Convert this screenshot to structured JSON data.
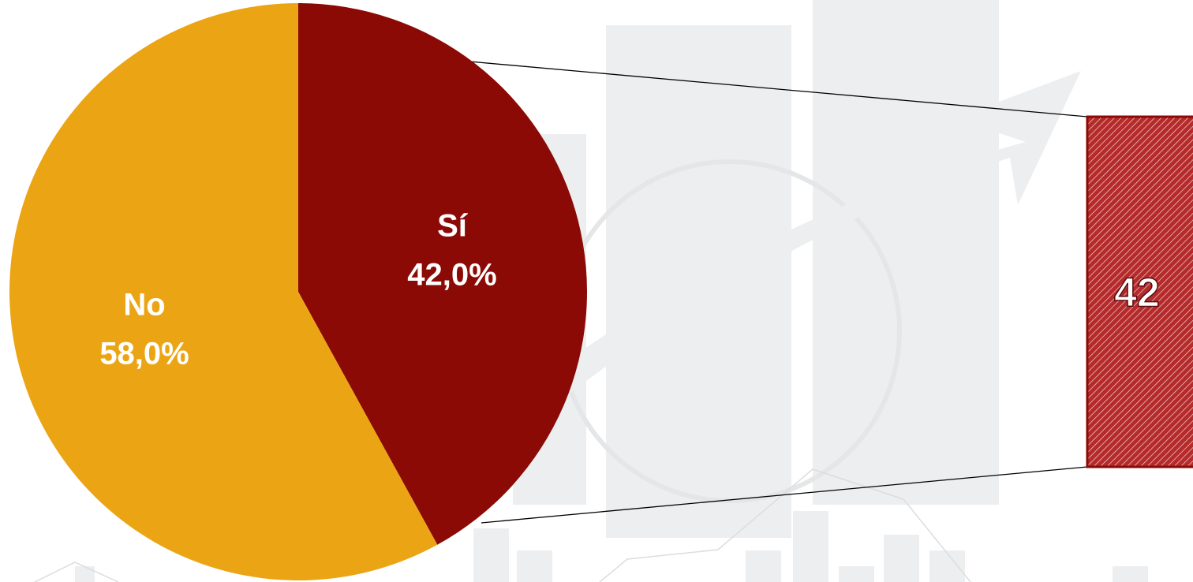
{
  "chart_data": {
    "type": "pie",
    "categories": [
      "Sí",
      "No"
    ],
    "values": [
      42,
      58
    ],
    "value_labels": [
      "42,0%",
      "58,0%"
    ],
    "colors": [
      "#8b0a05",
      "#eba514"
    ],
    "breakdown": {
      "values": [
        42
      ],
      "color": "#8b0a05"
    }
  }
}
